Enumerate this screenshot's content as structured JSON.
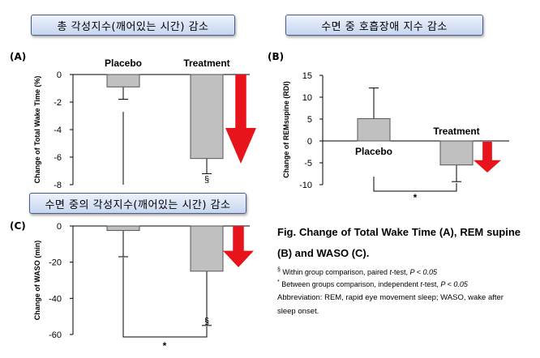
{
  "banners": {
    "a": "총 각성지수(깨어있는 시간) 감소",
    "b": "수면 중 호흡장애 지수 감소",
    "c": "수면 중의 각성지수(깨어있는 시간) 감소"
  },
  "panels": [
    "(A)",
    "(B)",
    "(C)"
  ],
  "chart_data": [
    {
      "type": "bar",
      "panel": "(A)",
      "categories": [
        "Placebo",
        "Treatment"
      ],
      "values": [
        -0.9,
        -6.1
      ],
      "error": [
        0.9,
        1.1
      ],
      "ylabel": "Change of Total Wake Time (%)",
      "ylim": [
        -8,
        0
      ],
      "yticks": [
        "0",
        "-2",
        "-4",
        "-6",
        "-8"
      ],
      "annotations": [
        "§"
      ]
    },
    {
      "type": "bar",
      "panel": "(B)",
      "categories": [
        "Placebo",
        "Treatment"
      ],
      "values": [
        5.1,
        -5.5
      ],
      "error": [
        7.0,
        3.8
      ],
      "ylabel": "Change of REMsupine (RDI)",
      "ylim": [
        -10,
        15
      ],
      "yticks": [
        "15",
        "10",
        "5",
        "0",
        "-5",
        "-10"
      ],
      "annotations": [
        "*"
      ]
    },
    {
      "type": "bar",
      "panel": "(C)",
      "values": [
        -2.5,
        -25
      ],
      "error": [
        14.5,
        30
      ],
      "ylabel": "Change of WASO (min)",
      "ylim": [
        -60,
        0
      ],
      "yticks": [
        "0",
        "-20",
        "-40",
        "-60"
      ],
      "annotations": [
        "*",
        "§"
      ]
    }
  ],
  "caption": {
    "title": "Fig. Change of Total Wake Time (A), REM supine (B) and WASO (C).",
    "note1_mark": "§",
    "note1_text": " Within group comparison, paired ",
    "note1_t": "t",
    "note1_rest": "-test, ",
    "note1_p": "P < 0.05",
    "note2_mark": "*",
    "note2_text": " Between groups comparison, independent ",
    "note2_t": "t",
    "note2_rest": "-test, ",
    "note2_p": "P < 0.05",
    "abbreviation": "Abbreviation: REM, rapid eye movement sleep; WASO, wake after sleep onset."
  },
  "colors": {
    "bar": "#c0c0c0",
    "bar_stroke": "#555555",
    "arrow": "#e8141c"
  }
}
